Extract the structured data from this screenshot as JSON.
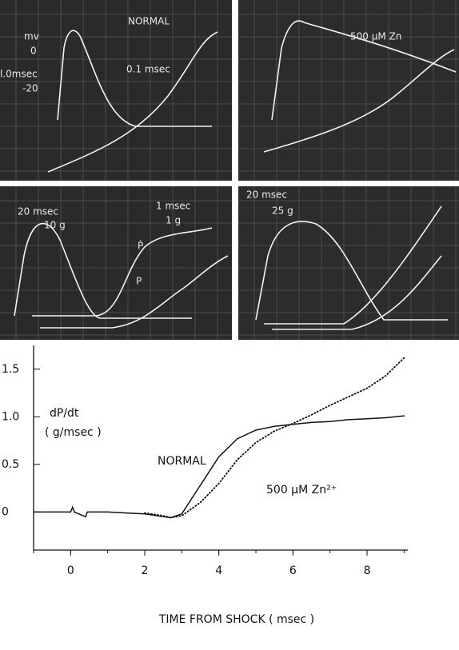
{
  "panels": [
    {
      "labels": [
        "NORMAL",
        "mv",
        "0",
        "l.0msec",
        "-20",
        "0.1 msec"
      ]
    },
    {
      "labels": [
        "500 μM Zn"
      ]
    },
    {
      "labels": [
        "20 msec",
        "10 g",
        "1 msec",
        "1 g",
        "Ṗ",
        "P"
      ]
    },
    {
      "labels": [
        "20 msec",
        "25 g"
      ]
    }
  ],
  "chart_data": {
    "type": "line",
    "annotations": [
      "dP/dt",
      "( g/msec )"
    ],
    "xlabel": "TIME FROM SHOCK ( msec )",
    "x": [
      -1,
      -0.5,
      0,
      0.05,
      0.1,
      0.4,
      0.45,
      0.5,
      1,
      1.5,
      2,
      2.5,
      2.7,
      3,
      3.5,
      4,
      4.5,
      5,
      5.5,
      6,
      6.5,
      7,
      7.5,
      8,
      8.5,
      9
    ],
    "series": [
      {
        "name": "NORMAL",
        "color": "#111111",
        "style": "solid",
        "values": [
          0,
          0,
          0,
          0.05,
          0,
          -0.05,
          0,
          0,
          0,
          -0.01,
          -0.02,
          -0.05,
          -0.06,
          -0.02,
          0.28,
          0.58,
          0.77,
          0.86,
          0.9,
          0.92,
          0.94,
          0.95,
          0.97,
          0.98,
          0.99,
          1.01
        ]
      },
      {
        "name": "500 μM Zn²⁺",
        "color": "#111111",
        "style": "dotted",
        "values": [
          null,
          null,
          null,
          null,
          null,
          null,
          null,
          null,
          null,
          null,
          -0.01,
          -0.04,
          -0.06,
          -0.04,
          0.1,
          0.3,
          0.55,
          0.73,
          0.85,
          0.93,
          1.02,
          1.12,
          1.21,
          1.3,
          1.43,
          1.62
        ]
      }
    ],
    "xlim": [
      -1,
      9.1
    ],
    "ylim": [
      -0.4,
      1.75
    ],
    "xticks": [
      0,
      2,
      4,
      6,
      8
    ],
    "yticks": [
      0,
      0.5,
      {
        "value": 1,
        "label": "1.0"
      },
      1.5
    ]
  }
}
